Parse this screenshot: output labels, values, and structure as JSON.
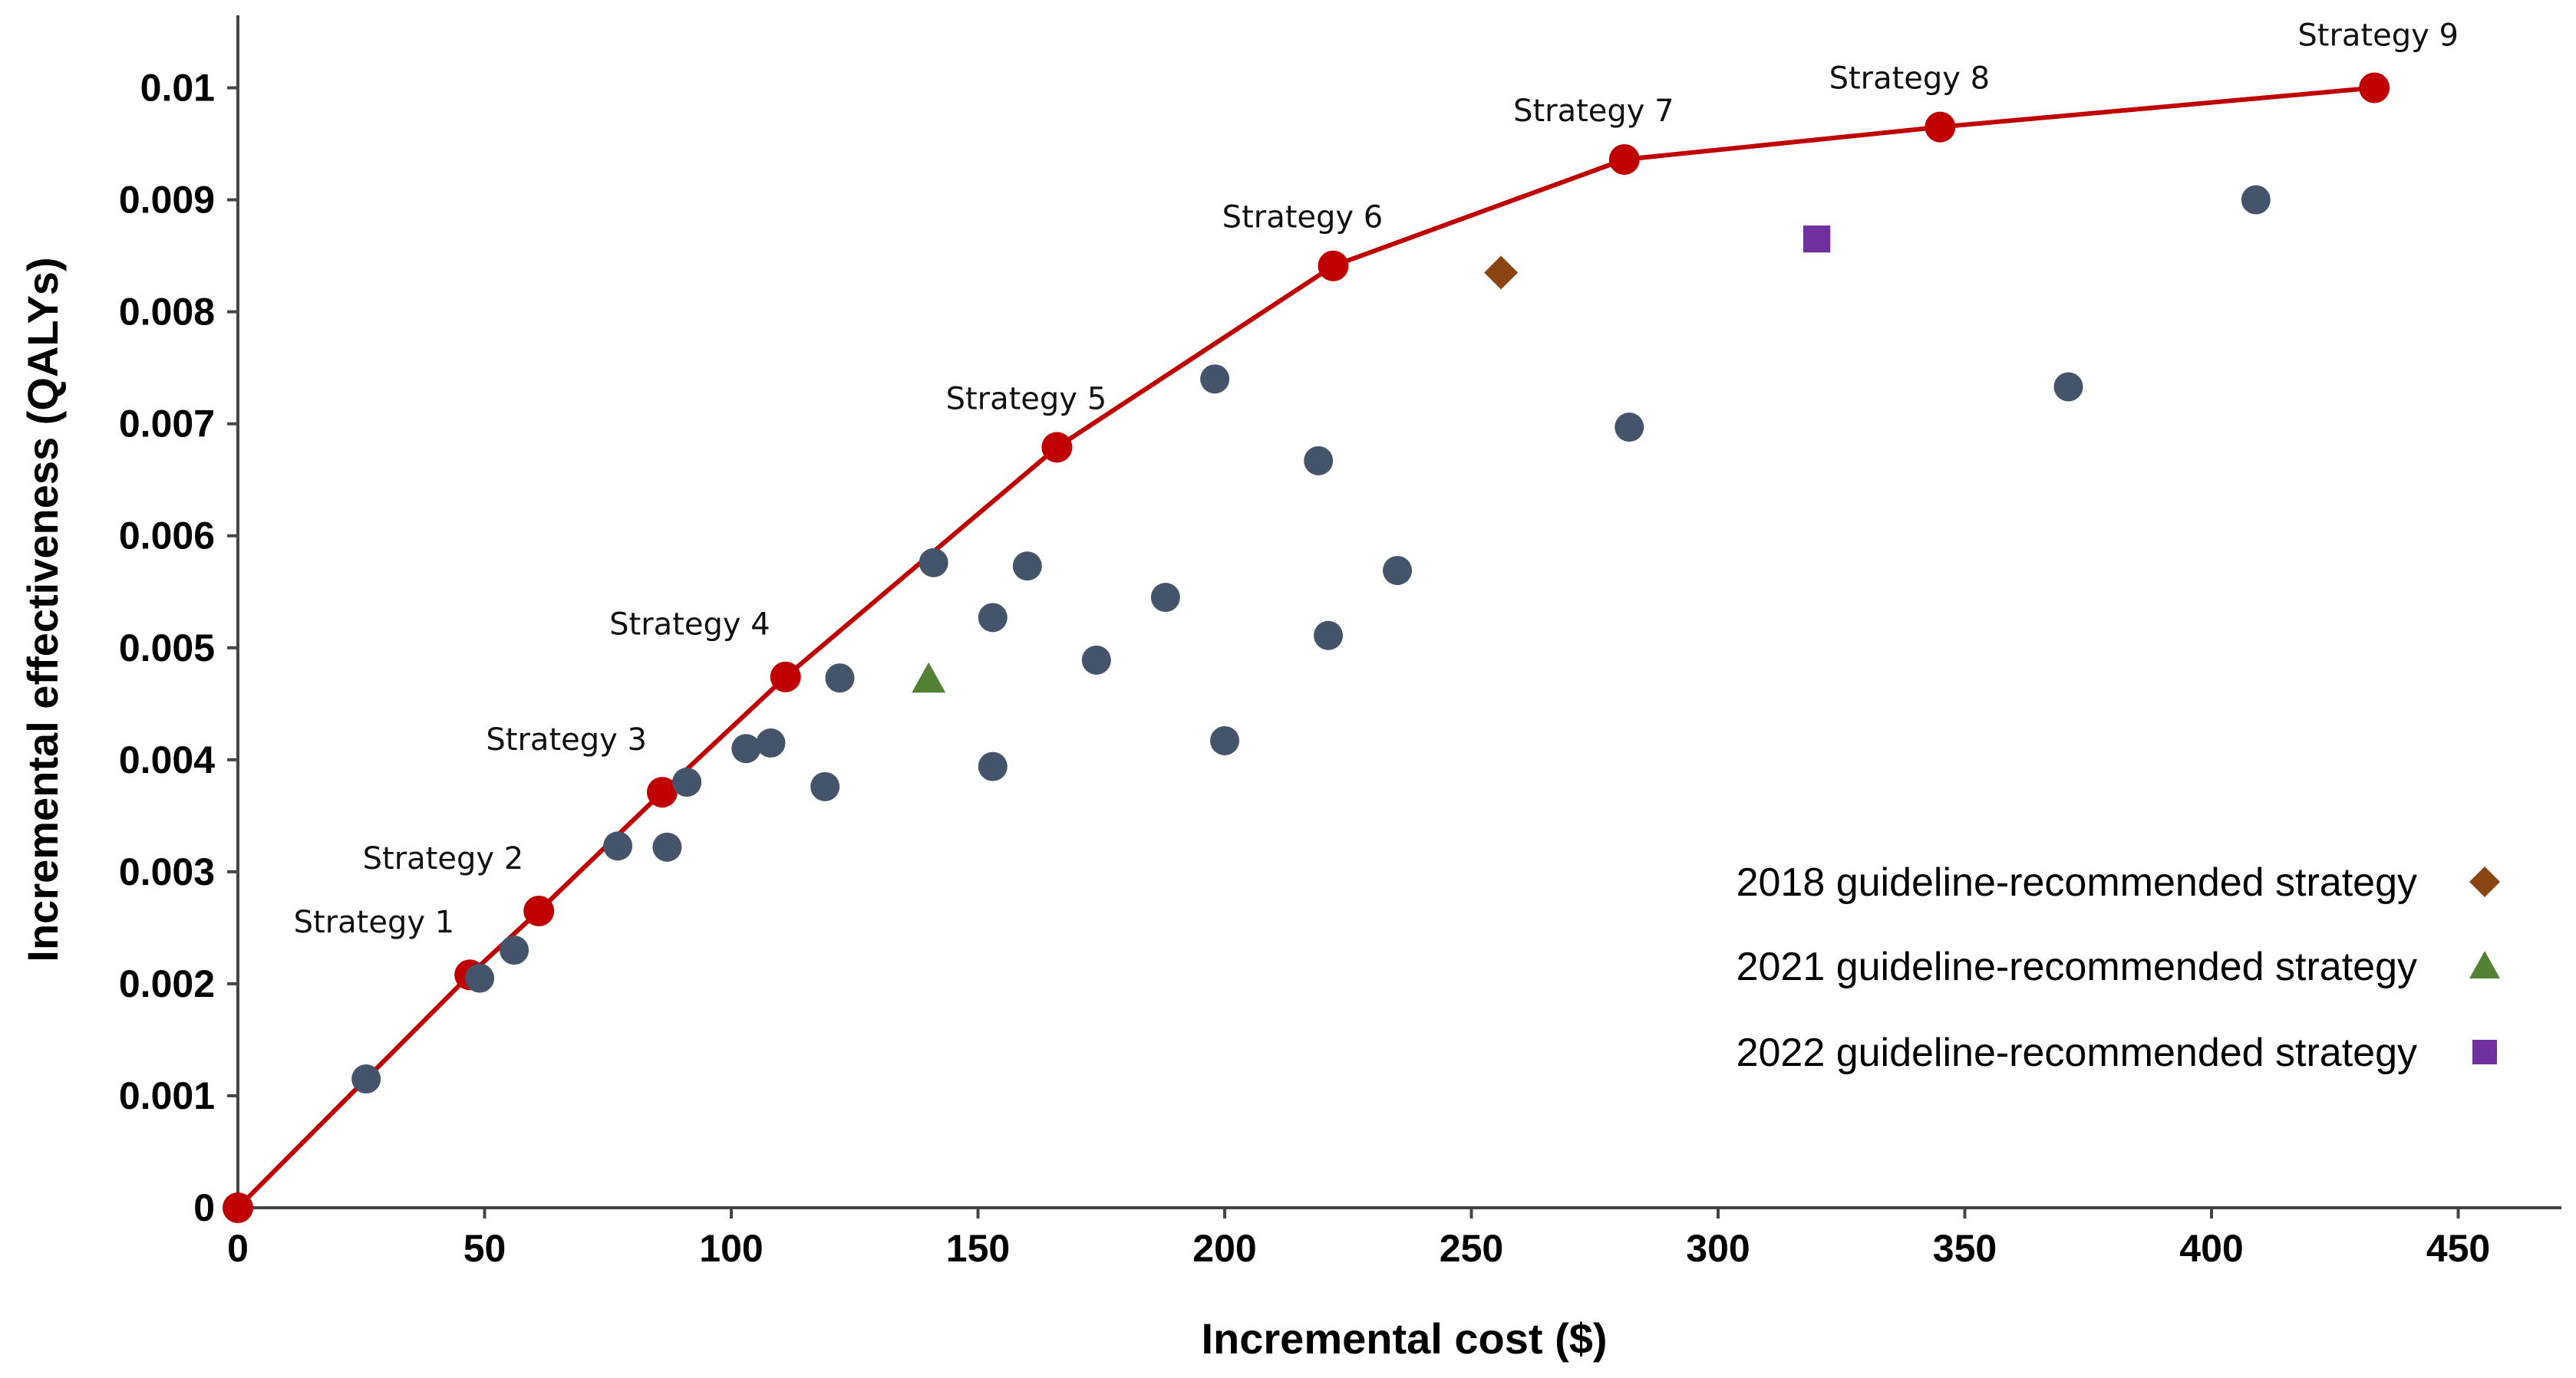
{
  "chart_data": {
    "type": "scatter",
    "xlabel": "Incremental cost ($)",
    "ylabel": "Incremental effectiveness (QALYs)",
    "xlim": [
      0,
      470
    ],
    "ylim": [
      0,
      0.0105
    ],
    "x_ticks": [
      0,
      50,
      100,
      150,
      200,
      250,
      300,
      350,
      400,
      450
    ],
    "x_tick_labels": [
      "0",
      "50",
      "100",
      "150",
      "200",
      "250",
      "300",
      "350",
      "400",
      "450"
    ],
    "y_ticks": [
      0,
      0.001,
      0.002,
      0.003,
      0.004,
      0.005,
      0.006,
      0.007,
      0.008,
      0.009,
      0.01
    ],
    "y_tick_labels": [
      "0",
      "0.001",
      "0.002",
      "0.003",
      "0.004",
      "0.005",
      "0.006",
      "0.007",
      "0.008",
      "0.009",
      "0.01"
    ],
    "grid": false,
    "frontier": {
      "color": "#c00000",
      "points": [
        {
          "x": 0,
          "y": 0,
          "label": ""
        },
        {
          "x": 47,
          "y": 0.00208,
          "label": "Strategy 1"
        },
        {
          "x": 61,
          "y": 0.00265,
          "label": "Strategy 2"
        },
        {
          "x": 86,
          "y": 0.00371,
          "label": "Strategy 3"
        },
        {
          "x": 111,
          "y": 0.00474,
          "label": "Strategy 4"
        },
        {
          "x": 166,
          "y": 0.00679,
          "label": "Strategy 5"
        },
        {
          "x": 222,
          "y": 0.00841,
          "label": "Strategy 6"
        },
        {
          "x": 281,
          "y": 0.00936,
          "label": "Strategy 7"
        },
        {
          "x": 345,
          "y": 0.00965,
          "label": "Strategy 8"
        },
        {
          "x": 433,
          "y": 0.01,
          "label": "Strategy 9"
        }
      ]
    },
    "other_strategies": {
      "color": "#44546a",
      "points": [
        [
          26,
          0.00115
        ],
        [
          49,
          0.00205
        ],
        [
          56,
          0.0023
        ],
        [
          77,
          0.00323
        ],
        [
          87,
          0.00322
        ],
        [
          91,
          0.0038
        ],
        [
          103,
          0.0041
        ],
        [
          108,
          0.00415
        ],
        [
          119,
          0.00376
        ],
        [
          122,
          0.00473
        ],
        [
          141,
          0.00576
        ],
        [
          153,
          0.00527
        ],
        [
          153,
          0.00394
        ],
        [
          160,
          0.00573
        ],
        [
          174,
          0.00489
        ],
        [
          188,
          0.00545
        ],
        [
          198,
          0.0074
        ],
        [
          200,
          0.00417
        ],
        [
          219,
          0.00667
        ],
        [
          221,
          0.00511
        ],
        [
          235,
          0.00569
        ],
        [
          282,
          0.00697
        ],
        [
          371,
          0.00733
        ],
        [
          409,
          0.009
        ]
      ]
    },
    "guidelines": [
      {
        "label": "2018 guideline-recommended strategy",
        "marker": "diamond",
        "color": "#8b4513",
        "x": 256,
        "y": 0.00835
      },
      {
        "label": "2021 guideline-recommended strategy",
        "marker": "triangle",
        "color": "#548235",
        "x": 140,
        "y": 0.00472
      },
      {
        "label": "2022 guideline-recommended strategy",
        "marker": "square",
        "color": "#7030a0",
        "x": 320,
        "y": 0.00865
      }
    ],
    "legend_position": "bottom-right"
  }
}
